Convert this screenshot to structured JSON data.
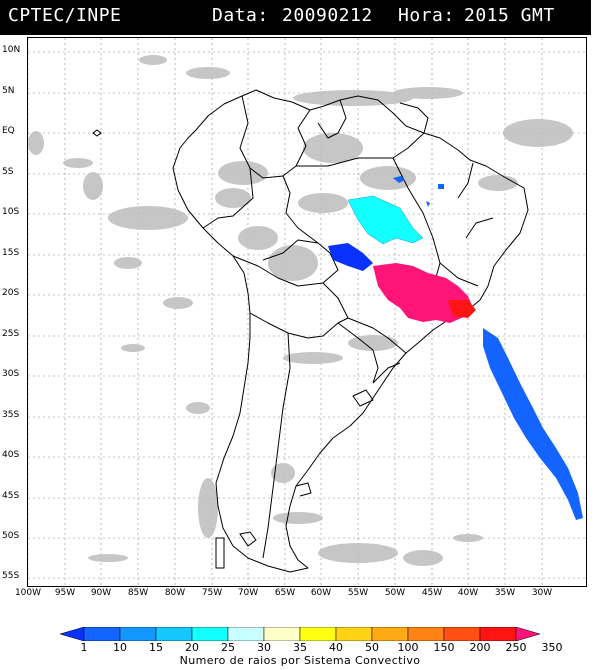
{
  "header": {
    "source": "CPTEC/INPE",
    "data_label": "Data:",
    "date": "20090212",
    "hora_label": "Hora:",
    "time": "2015 GMT"
  },
  "lat_labels": [
    "10N",
    "5N",
    "EQ",
    "5S",
    "10S",
    "15S",
    "20S",
    "25S",
    "30S",
    "35S",
    "40S",
    "45S",
    "50S",
    "55S"
  ],
  "lon_labels": [
    "100W",
    "95W",
    "90W",
    "85W",
    "80W",
    "75W",
    "70W",
    "65W",
    "60W",
    "55W",
    "50W",
    "45W",
    "40W",
    "35W",
    "30W"
  ],
  "colorbar": {
    "labels": [
      "1",
      "10",
      "15",
      "20",
      "25",
      "30",
      "35",
      "40",
      "50",
      "100",
      "150",
      "200",
      "250",
      "350"
    ],
    "colors": [
      "#0a32ff",
      "#1464ff",
      "#1496ff",
      "#14c8ff",
      "#14ffff",
      "#c8ffff",
      "#ffffc8",
      "#ffff14",
      "#ffd214",
      "#ffaa14",
      "#ff8214",
      "#ff5014",
      "#ff1414",
      "#ff1478"
    ],
    "title": "Numero de raios por Sistema Convectivo"
  },
  "legend_colors": {
    "cloud": "#bdbdbd",
    "border": "#000000"
  }
}
